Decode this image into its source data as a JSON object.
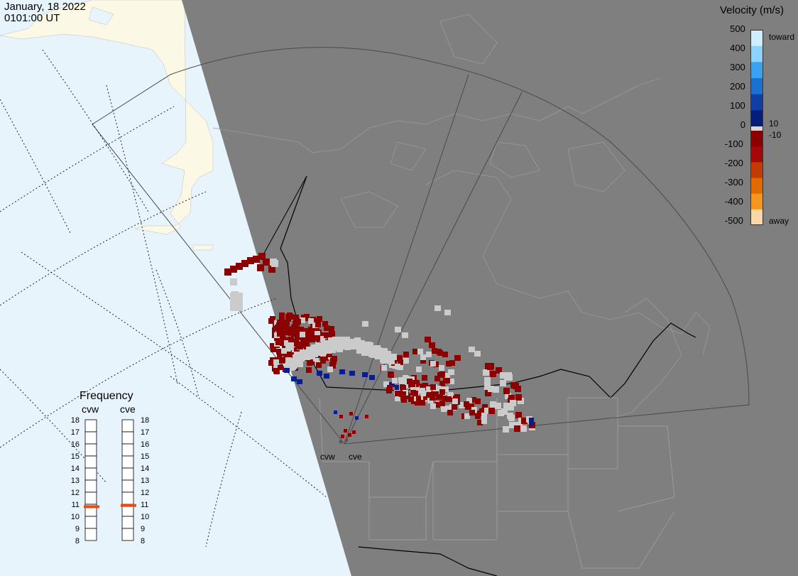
{
  "header": {
    "date": "January, 18 2022",
    "time": "0101:00 UT"
  },
  "legend": {
    "title": "Velocity (m/s)",
    "toward": "toward",
    "away": "away",
    "ticks_left": [
      "500",
      "400",
      "300",
      "200",
      "100",
      "0",
      "-100",
      "-200",
      "-300",
      "-400",
      "-500"
    ],
    "ticks_right": [
      "10",
      "-10"
    ],
    "colors": [
      "#cfeeff",
      "#8ed3ff",
      "#3aa2ee",
      "#1c70d0",
      "#0f3fa3",
      "#071d7a",
      "#8a0000",
      "#a40808",
      "#c23a04",
      "#e06a00",
      "#f49620",
      "#fbd6a8"
    ]
  },
  "frequency": {
    "title": "Frequency",
    "radars": [
      {
        "name": "cvw",
        "value": 10.8
      },
      {
        "name": "cve",
        "value": 10.9
      }
    ],
    "scale": [
      "18",
      "17",
      "16",
      "15",
      "14",
      "13",
      "12",
      "11",
      "10",
      "9",
      "8"
    ]
  },
  "radars": {
    "cvw": "cvw",
    "cve": "cve"
  },
  "palette": {
    "ocean": "#e8f4fc",
    "land_west": "#fbf8e6",
    "night": "#7f7f7f",
    "ground_scatter": "#cbcbcb",
    "red": "#8b0000",
    "blue": "#0a1d8a"
  }
}
